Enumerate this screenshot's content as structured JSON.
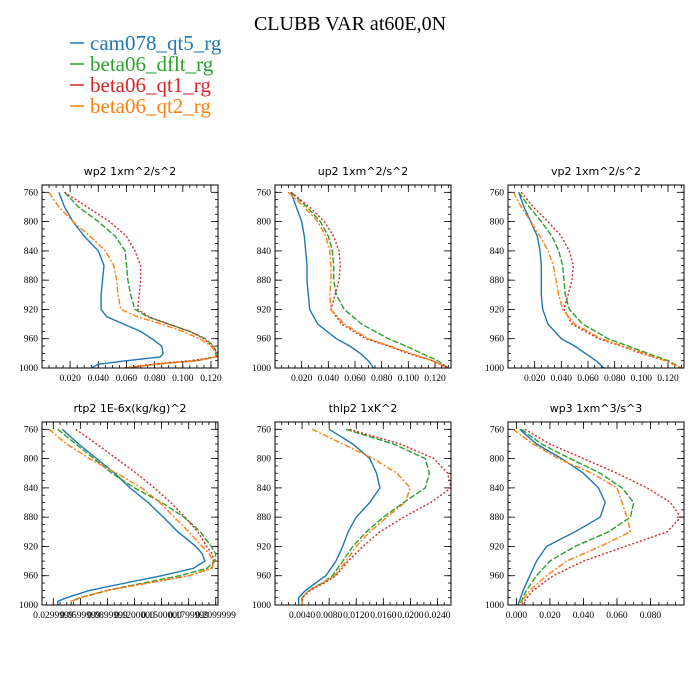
{
  "figure": {
    "title": "CLUBB VAR at60E,0N"
  },
  "legend": [
    {
      "name": "cam078_qt5_rg",
      "color": "#1f77b4"
    },
    {
      "name": "beta06_dflt_rg",
      "color": "#2ca02c"
    },
    {
      "name": "beta06_qt1_rg",
      "color": "#d62728"
    },
    {
      "name": "beta06_qt2_rg",
      "color": "#ff7f0e"
    }
  ],
  "chart_data": [
    {
      "type": "line",
      "title": "wp2   1xm^2/s^2",
      "xlim": [
        0,
        0.125
      ],
      "ylim": [
        1000,
        750
      ],
      "xticks": [
        0.02,
        0.04,
        0.06,
        0.08,
        0.1,
        0.12
      ],
      "xtick_labels": [
        "0.020",
        "0.040",
        "0.060",
        "0.080",
        "0.100",
        "0.120"
      ],
      "yticks": [
        760,
        800,
        840,
        880,
        920,
        960,
        1000
      ],
      "y": [
        760,
        780,
        800,
        820,
        840,
        860,
        880,
        900,
        920,
        930,
        940,
        950,
        960,
        970,
        980,
        985,
        990,
        995,
        1000
      ],
      "series": [
        {
          "name": "cam078_qt5_rg",
          "x": [
            0.012,
            0.016,
            0.022,
            0.03,
            0.04,
            0.044,
            0.043,
            0.042,
            0.042,
            0.046,
            0.058,
            0.07,
            0.078,
            0.085,
            0.086,
            0.084,
            0.06,
            0.04,
            0.035
          ]
        },
        {
          "name": "beta06_dflt_rg",
          "x": [
            0.016,
            0.026,
            0.04,
            0.052,
            0.059,
            0.06,
            0.061,
            0.063,
            0.066,
            0.075,
            0.09,
            0.105,
            0.116,
            0.122,
            0.124,
            0.123,
            0.11,
            0.08,
            0.06
          ]
        },
        {
          "name": "beta06_qt1_rg",
          "x": [
            0.016,
            0.032,
            0.048,
            0.06,
            0.066,
            0.07,
            0.07,
            0.069,
            0.068,
            0.076,
            0.09,
            0.105,
            0.115,
            0.121,
            0.125,
            0.124,
            0.105,
            0.078,
            0.058
          ]
        },
        {
          "name": "beta06_qt2_rg",
          "x": [
            0.005,
            0.012,
            0.022,
            0.034,
            0.045,
            0.051,
            0.053,
            0.054,
            0.056,
            0.068,
            0.085,
            0.1,
            0.112,
            0.12,
            0.124,
            0.123,
            0.11,
            0.08,
            0.06
          ]
        }
      ]
    },
    {
      "type": "line",
      "title": "up2   1xm^2/s^2",
      "xlim": [
        0,
        0.132
      ],
      "ylim": [
        1000,
        750
      ],
      "xticks": [
        0.02,
        0.04,
        0.06,
        0.08,
        0.1,
        0.12
      ],
      "xtick_labels": [
        "0.020",
        "0.040",
        "0.060",
        "0.080",
        "0.100",
        "0.120"
      ],
      "yticks": [
        760,
        800,
        840,
        880,
        920,
        960,
        1000
      ],
      "y": [
        760,
        780,
        800,
        820,
        840,
        860,
        880,
        900,
        920,
        940,
        960,
        970,
        980,
        990,
        1000
      ],
      "series": [
        {
          "name": "cam078_qt5_rg",
          "x": [
            0.012,
            0.016,
            0.02,
            0.022,
            0.023,
            0.024,
            0.024,
            0.025,
            0.026,
            0.032,
            0.046,
            0.056,
            0.064,
            0.07,
            0.074
          ]
        },
        {
          "name": "beta06_dflt_rg",
          "x": [
            0.012,
            0.024,
            0.034,
            0.04,
            0.043,
            0.044,
            0.044,
            0.046,
            0.052,
            0.065,
            0.085,
            0.098,
            0.11,
            0.122,
            0.13
          ]
        },
        {
          "name": "beta06_qt1_rg",
          "x": [
            0.012,
            0.026,
            0.037,
            0.044,
            0.048,
            0.049,
            0.048,
            0.045,
            0.042,
            0.05,
            0.068,
            0.085,
            0.1,
            0.118,
            0.13
          ]
        },
        {
          "name": "beta06_qt2_rg",
          "x": [
            0.01,
            0.022,
            0.032,
            0.038,
            0.041,
            0.042,
            0.042,
            0.041,
            0.042,
            0.052,
            0.07,
            0.086,
            0.102,
            0.118,
            0.13
          ]
        }
      ]
    },
    {
      "type": "line",
      "title": "vp2   1xm^2/s^2",
      "xlim": [
        0,
        0.132
      ],
      "ylim": [
        1000,
        750
      ],
      "xticks": [
        0.02,
        0.04,
        0.06,
        0.08,
        0.1,
        0.12
      ],
      "xtick_labels": [
        "0.020",
        "0.040",
        "0.060",
        "0.080",
        "0.100",
        "0.120"
      ],
      "yticks": [
        760,
        800,
        840,
        880,
        920,
        960,
        1000
      ],
      "y": [
        760,
        780,
        800,
        820,
        840,
        860,
        880,
        900,
        920,
        940,
        960,
        970,
        980,
        990,
        1000
      ],
      "series": [
        {
          "name": "cam078_qt5_rg",
          "x": [
            0.008,
            0.012,
            0.017,
            0.022,
            0.024,
            0.025,
            0.025,
            0.025,
            0.026,
            0.03,
            0.04,
            0.05,
            0.058,
            0.066,
            0.072
          ]
        },
        {
          "name": "beta06_dflt_rg",
          "x": [
            0.008,
            0.016,
            0.025,
            0.033,
            0.038,
            0.041,
            0.042,
            0.043,
            0.046,
            0.056,
            0.075,
            0.09,
            0.105,
            0.12,
            0.13
          ]
        },
        {
          "name": "beta06_qt1_rg",
          "x": [
            0.01,
            0.019,
            0.03,
            0.04,
            0.046,
            0.049,
            0.048,
            0.045,
            0.042,
            0.048,
            0.068,
            0.085,
            0.1,
            0.118,
            0.13
          ]
        },
        {
          "name": "beta06_qt2_rg",
          "x": [
            0.004,
            0.01,
            0.017,
            0.024,
            0.03,
            0.034,
            0.036,
            0.038,
            0.041,
            0.05,
            0.07,
            0.086,
            0.102,
            0.118,
            0.13
          ]
        }
      ]
    },
    {
      "type": "line",
      "title": "rtp2   1E-6x(kg/kg)^2",
      "xlim": [
        0.0175,
        0.2125
      ],
      "ylim": [
        1000,
        750
      ],
      "xticks": [
        0.03,
        0.06,
        0.09,
        0.12,
        0.15,
        0.18,
        0.21
      ],
      "xtick_labels": [
        "0.0299999",
        "0.0599999",
        "0.0899999",
        "0.1200000",
        "0.1500000",
        "0.1799999",
        "0.2099999"
      ],
      "yticks": [
        760,
        800,
        840,
        880,
        920,
        960,
        1000
      ],
      "y": [
        760,
        780,
        800,
        820,
        840,
        860,
        880,
        900,
        920,
        930,
        940,
        950,
        960,
        970,
        980,
        990,
        995,
        1000
      ],
      "series": [
        {
          "name": "cam078_qt5_rg",
          "x": [
            0.04,
            0.058,
            0.078,
            0.098,
            0.115,
            0.135,
            0.152,
            0.168,
            0.188,
            0.195,
            0.198,
            0.185,
            0.15,
            0.11,
            0.07,
            0.045,
            0.035,
            0.035
          ]
        },
        {
          "name": "beta06_dflt_rg",
          "x": [
            0.035,
            0.055,
            0.075,
            0.095,
            0.12,
            0.15,
            0.175,
            0.193,
            0.205,
            0.21,
            0.209,
            0.2,
            0.17,
            0.13,
            0.09,
            0.06,
            0.05,
            0.05
          ]
        },
        {
          "name": "beta06_qt1_rg",
          "x": [
            0.055,
            0.078,
            0.1,
            0.122,
            0.142,
            0.16,
            0.176,
            0.19,
            0.2,
            0.206,
            0.208,
            0.205,
            0.18,
            0.135,
            0.09,
            0.06,
            0.05,
            0.05
          ]
        },
        {
          "name": "beta06_qt2_rg",
          "x": [
            0.025,
            0.045,
            0.07,
            0.1,
            0.128,
            0.148,
            0.164,
            0.18,
            0.195,
            0.203,
            0.207,
            0.206,
            0.18,
            0.135,
            0.09,
            0.06,
            0.05,
            0.05
          ]
        }
      ]
    },
    {
      "type": "line",
      "title": "thlp2   1xK^2",
      "xlim": [
        0,
        0.026
      ],
      "ylim": [
        1000,
        750
      ],
      "xticks": [
        0.004,
        0.008,
        0.012,
        0.016,
        0.02,
        0.024
      ],
      "xtick_labels": [
        "0.0040",
        "0.0080",
        "0.0120",
        "0.0160",
        "0.0200",
        "0.0240"
      ],
      "yticks": [
        760,
        800,
        840,
        880,
        920,
        960,
        1000
      ],
      "y": [
        760,
        780,
        800,
        820,
        840,
        860,
        880,
        900,
        920,
        940,
        960,
        970,
        980,
        990,
        1000
      ],
      "series": [
        {
          "name": "cam078_qt5_rg",
          "x": [
            0.008,
            0.0115,
            0.014,
            0.015,
            0.0155,
            0.014,
            0.012,
            0.0108,
            0.01,
            0.009,
            0.0075,
            0.006,
            0.0045,
            0.0035,
            0.0035
          ]
        },
        {
          "name": "beta06_dflt_rg",
          "x": [
            0.0105,
            0.0175,
            0.0222,
            0.0228,
            0.0222,
            0.019,
            0.016,
            0.0135,
            0.0115,
            0.01,
            0.0085,
            0.007,
            0.005,
            0.004,
            0.004
          ]
        },
        {
          "name": "beta06_qt1_rg",
          "x": [
            0.011,
            0.0185,
            0.0235,
            0.0255,
            0.026,
            0.023,
            0.019,
            0.0155,
            0.013,
            0.0108,
            0.009,
            0.0073,
            0.0052,
            0.004,
            0.004
          ]
        },
        {
          "name": "beta06_qt2_rg",
          "x": [
            0.0055,
            0.01,
            0.0145,
            0.018,
            0.02,
            0.0192,
            0.0165,
            0.014,
            0.012,
            0.0105,
            0.0088,
            0.007,
            0.005,
            0.004,
            0.004
          ]
        }
      ]
    },
    {
      "type": "line",
      "title": "wp3   1xm^3/s^3",
      "xlim": [
        -0.005,
        0.1
      ],
      "ylim": [
        1000,
        750
      ],
      "xticks": [
        0.0,
        0.02,
        0.04,
        0.06,
        0.08
      ],
      "xtick_labels": [
        "0.000",
        "0.020",
        "0.040",
        "0.060",
        "0.080"
      ],
      "yticks": [
        760,
        800,
        840,
        880,
        920,
        960,
        1000
      ],
      "y": [
        760,
        780,
        800,
        820,
        840,
        860,
        880,
        900,
        920,
        940,
        960,
        980,
        1000
      ],
      "series": [
        {
          "name": "cam078_qt5_rg",
          "x": [
            0.002,
            0.012,
            0.027,
            0.04,
            0.049,
            0.053,
            0.05,
            0.035,
            0.018,
            0.012,
            0.008,
            0.004,
            0.001
          ]
        },
        {
          "name": "beta06_dflt_rg",
          "x": [
            0.003,
            0.015,
            0.032,
            0.05,
            0.063,
            0.07,
            0.068,
            0.055,
            0.035,
            0.02,
            0.012,
            0.006,
            0.002
          ]
        },
        {
          "name": "beta06_qt1_rg",
          "x": [
            0.005,
            0.02,
            0.04,
            0.06,
            0.078,
            0.092,
            0.098,
            0.09,
            0.065,
            0.04,
            0.022,
            0.01,
            0.003
          ]
        },
        {
          "name": "beta06_qt2_rg",
          "x": [
            -0.002,
            0.01,
            0.025,
            0.045,
            0.06,
            0.063,
            0.066,
            0.068,
            0.05,
            0.03,
            0.018,
            0.008,
            0.002
          ]
        }
      ]
    }
  ]
}
